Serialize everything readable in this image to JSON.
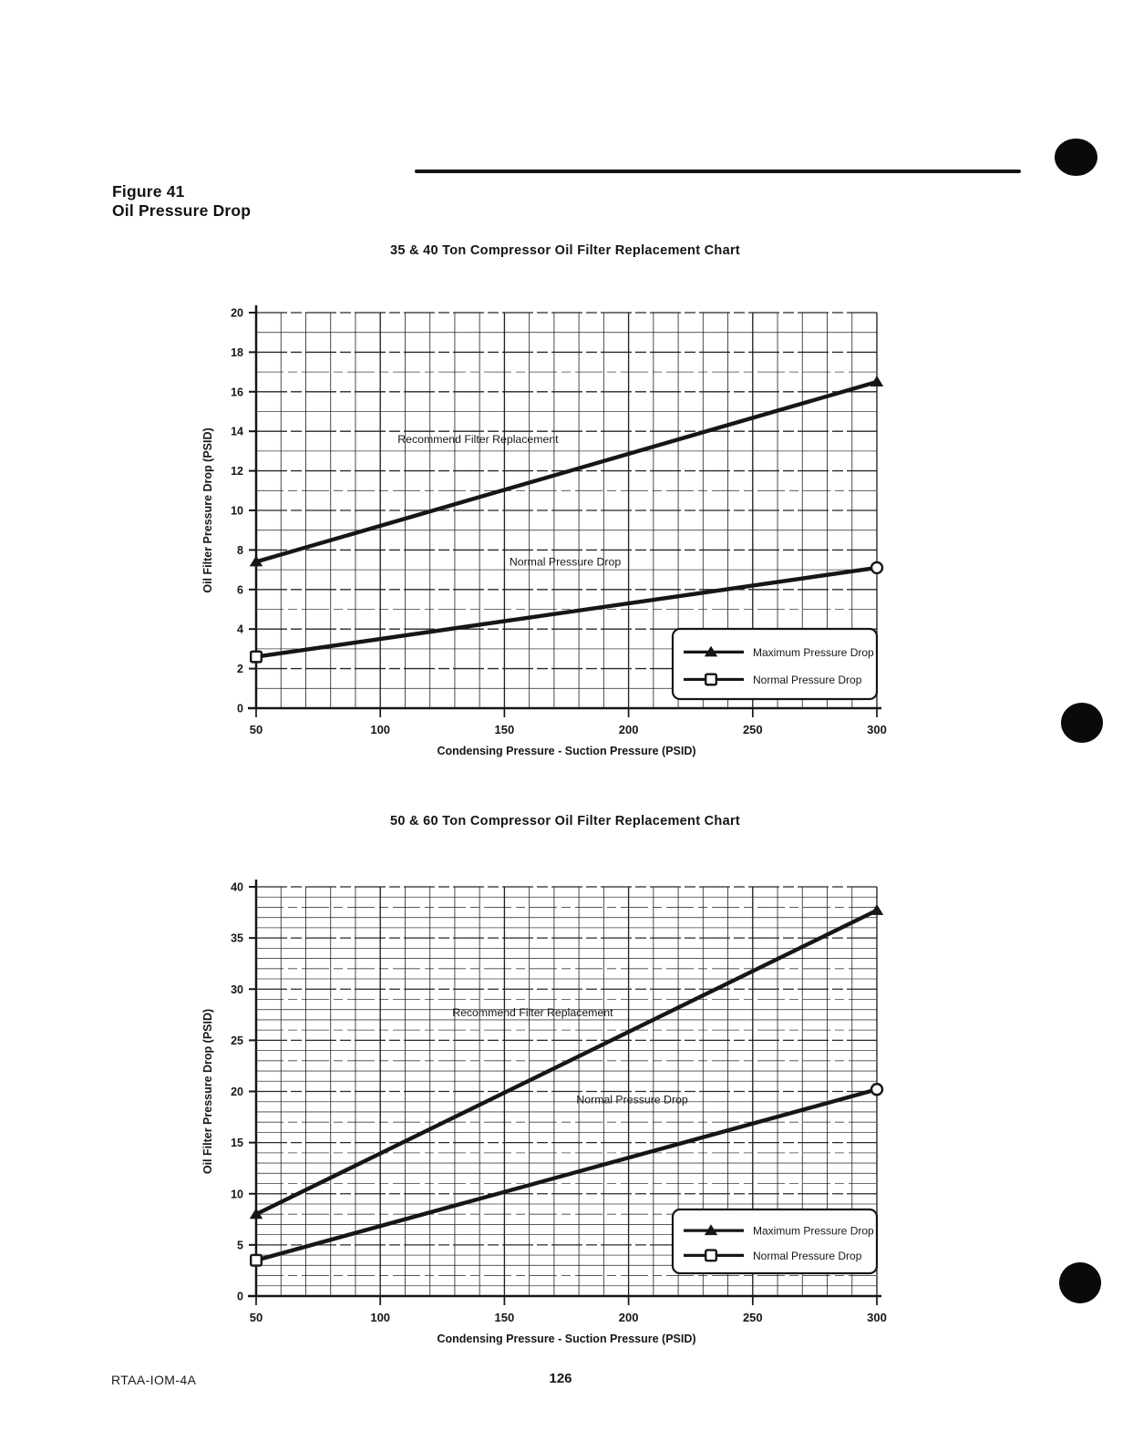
{
  "page": {
    "figure_label": "Figure 41",
    "figure_title": "Oil Pressure Drop",
    "footer_left": "RTAA-IOM-4A",
    "page_number": "126"
  },
  "colors": {
    "ink": "#161616",
    "paper": "#ffffff"
  },
  "chart_data": [
    {
      "type": "line",
      "title": "35 & 40 Ton Compressor Oil Filter Replacement Chart",
      "xlabel": "Condensing Pressure - Suction Pressure (PSID)",
      "ylabel": "Oil Filter Pressure Drop (PSID)",
      "xlim": [
        50,
        300
      ],
      "ylim": [
        0,
        20
      ],
      "x_ticks": [
        50,
        100,
        150,
        200,
        250,
        300
      ],
      "y_ticks": [
        0,
        2,
        4,
        6,
        8,
        10,
        12,
        14,
        16,
        18,
        20
      ],
      "x_minor_step": 10,
      "y_minor_step": 1,
      "grid": true,
      "legend_position": "lower right",
      "series": [
        {
          "name": "Maximum Pressure Drop",
          "marker": "triangle",
          "points": [
            [
              50,
              7.4
            ],
            [
              300,
              16.5
            ]
          ]
        },
        {
          "name": "Normal Pressure Drop",
          "marker": "square-circle",
          "points": [
            [
              50,
              2.6
            ],
            [
              300,
              7.1
            ]
          ]
        }
      ],
      "annotations": [
        {
          "text": "Recommend Filter Replacement",
          "x": 107,
          "y": 13.6
        },
        {
          "text": "Normal Pressure Drop",
          "x": 152,
          "y": 7.4
        }
      ]
    },
    {
      "type": "line",
      "title": "50 & 60 Ton Compressor Oil Filter Replacement Chart",
      "xlabel": "Condensing Pressure - Suction Pressure (PSID)",
      "ylabel": "Oil Filter Pressure Drop (PSID)",
      "xlim": [
        50,
        300
      ],
      "ylim": [
        0,
        40
      ],
      "x_ticks": [
        50,
        100,
        150,
        200,
        250,
        300
      ],
      "y_ticks": [
        0,
        5,
        10,
        15,
        20,
        25,
        30,
        35,
        40
      ],
      "x_minor_step": 10,
      "y_minor_step": 1,
      "grid": true,
      "legend_position": "lower right",
      "series": [
        {
          "name": "Maximum Pressure Drop",
          "marker": "triangle",
          "points": [
            [
              50,
              8.0
            ],
            [
              300,
              37.7
            ]
          ]
        },
        {
          "name": "Normal Pressure Drop",
          "marker": "square-circle",
          "points": [
            [
              50,
              3.5
            ],
            [
              300,
              20.2
            ]
          ]
        }
      ],
      "annotations": [
        {
          "text": "Recommend Filter Replacement",
          "x": 129,
          "y": 27.7
        },
        {
          "text": "Normal Pressure Drop",
          "x": 179,
          "y": 19.2
        }
      ]
    }
  ]
}
